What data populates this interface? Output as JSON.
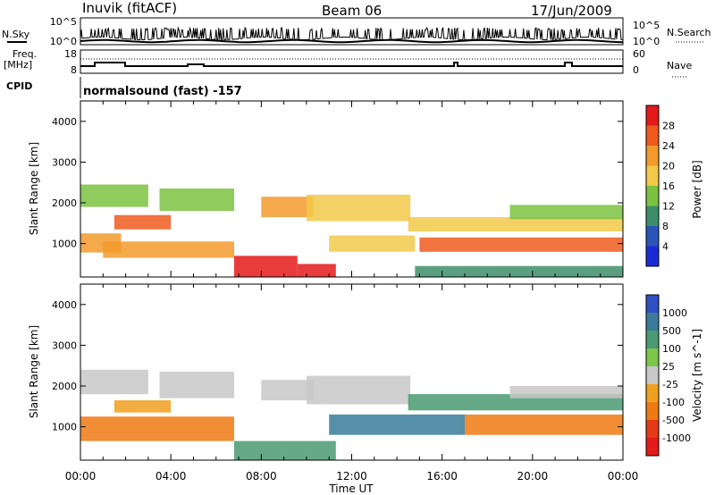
{
  "header": {
    "station": "Inuvik (fitACF)",
    "beam": "Beam 06",
    "date": "17/Jun/2009"
  },
  "top_panels": {
    "nsky_label": "N.Sky",
    "nsky_tick_top": "10^5",
    "nsky_tick_bottom": "10^0",
    "nsearch_label": "N.Search",
    "nsearch_tick_top": "10^5",
    "nsearch_tick_bottom": "10^0",
    "freq_label": "Freq.",
    "freq_unit": "[MHz]",
    "freq_tick_top": "18",
    "freq_tick_bottom": "8",
    "nave_label": "Nave",
    "nave_tick_top": "60",
    "nave_tick_bottom": "0",
    "cpid_label": "CPID",
    "cpid_text": "normalsound (fast) -157"
  },
  "colors": {
    "power": [
      "#1a2bd6",
      "#2a55b8",
      "#3d8f6a",
      "#7cc242",
      "#f2c94a",
      "#f29a2b",
      "#ef5a1e",
      "#e41a1a"
    ],
    "velocity": [
      "#2f4fc4",
      "#3a7b9a",
      "#4a9a72",
      "#7cc64a",
      "#c8c8c8",
      "#f0a020",
      "#ee7a12",
      "#e43a18",
      "#e41a1a"
    ]
  },
  "chart_data": [
    {
      "type": "heatmap",
      "title": "",
      "xlabel": "",
      "ylabel": "Slant Range [km]",
      "x_ticks": [
        "00:00",
        "04:00",
        "08:00",
        "12:00",
        "16:00",
        "20:00",
        "00:00"
      ],
      "xlim_hours": [
        0,
        24
      ],
      "ylim_km": [
        180,
        4500
      ],
      "y_ticks": [
        1000,
        2000,
        3000,
        4000
      ],
      "colorbar": {
        "label": "Power [dB]",
        "ticks": [
          4,
          8,
          12,
          16,
          20,
          24,
          28
        ],
        "range": [
          0,
          30
        ]
      },
      "echo_bands": [
        {
          "t_start": 0.0,
          "t_end": 1.8,
          "range_low_km": 780,
          "range_high_km": 1250,
          "value_db": 22
        },
        {
          "t_start": 0.0,
          "t_end": 3.0,
          "range_low_km": 1900,
          "range_high_km": 2450,
          "value_db": 14
        },
        {
          "t_start": 1.0,
          "t_end": 6.8,
          "range_low_km": 650,
          "range_high_km": 1050,
          "value_db": 20
        },
        {
          "t_start": 1.5,
          "t_end": 4.0,
          "range_low_km": 1350,
          "range_high_km": 1700,
          "value_db": 24
        },
        {
          "t_start": 3.5,
          "t_end": 6.8,
          "range_low_km": 1800,
          "range_high_km": 2350,
          "value_db": 14
        },
        {
          "t_start": 6.8,
          "t_end": 9.6,
          "range_low_km": 180,
          "range_high_km": 700,
          "value_db": 28
        },
        {
          "t_start": 8.0,
          "t_end": 10.3,
          "range_low_km": 1650,
          "range_high_km": 2150,
          "value_db": 20
        },
        {
          "t_start": 9.6,
          "t_end": 11.3,
          "range_low_km": 180,
          "range_high_km": 500,
          "value_db": 27
        },
        {
          "t_start": 10.0,
          "t_end": 14.6,
          "range_low_km": 1550,
          "range_high_km": 2200,
          "value_db": 15
        },
        {
          "t_start": 11.0,
          "t_end": 14.8,
          "range_low_km": 800,
          "range_high_km": 1200,
          "value_db": 18
        },
        {
          "t_start": 14.5,
          "t_end": 24.0,
          "range_low_km": 1300,
          "range_high_km": 1650,
          "value_db": 17
        },
        {
          "t_start": 15.0,
          "t_end": 24.0,
          "range_low_km": 800,
          "range_high_km": 1150,
          "value_db": 23
        },
        {
          "t_start": 14.8,
          "t_end": 24.0,
          "range_low_km": 180,
          "range_high_km": 450,
          "value_db": 9
        },
        {
          "t_start": 19.0,
          "t_end": 24.0,
          "range_low_km": 1600,
          "range_high_km": 1950,
          "value_db": 12
        }
      ]
    },
    {
      "type": "heatmap",
      "title": "",
      "xlabel": "Time UT",
      "ylabel": "Slant Range [km]",
      "x_ticks": [
        "00:00",
        "04:00",
        "08:00",
        "12:00",
        "16:00",
        "20:00",
        "00:00"
      ],
      "xlim_hours": [
        0,
        24
      ],
      "ylim_km": [
        180,
        4500
      ],
      "y_ticks": [
        1000,
        2000,
        3000,
        4000
      ],
      "colorbar": {
        "label": "Velocity [m s^-1]",
        "ticks": [
          "1000",
          "500",
          "100",
          "25",
          "-25",
          "-100",
          "-500",
          "-1000"
        ]
      },
      "echo_bands": [
        {
          "t_start": 0.0,
          "t_end": 3.0,
          "range_low_km": 1800,
          "range_high_km": 2400,
          "value_ms": 0
        },
        {
          "t_start": 3.5,
          "t_end": 6.8,
          "range_low_km": 1700,
          "range_high_km": 2350,
          "value_ms": 0
        },
        {
          "t_start": 0.0,
          "t_end": 6.8,
          "range_low_km": 650,
          "range_high_km": 1250,
          "value_ms": -150
        },
        {
          "t_start": 1.5,
          "t_end": 4.0,
          "range_low_km": 1350,
          "range_high_km": 1650,
          "value_ms": -80
        },
        {
          "t_start": 6.8,
          "t_end": 11.3,
          "range_low_km": 180,
          "range_high_km": 650,
          "value_ms": 80
        },
        {
          "t_start": 8.0,
          "t_end": 10.3,
          "range_low_km": 1650,
          "range_high_km": 2150,
          "value_ms": 0
        },
        {
          "t_start": 10.0,
          "t_end": 14.6,
          "range_low_km": 1550,
          "range_high_km": 2250,
          "value_ms": 0
        },
        {
          "t_start": 11.0,
          "t_end": 17.0,
          "range_low_km": 800,
          "range_high_km": 1300,
          "value_ms": 120
        },
        {
          "t_start": 14.5,
          "t_end": 24.0,
          "range_low_km": 1400,
          "range_high_km": 1800,
          "value_ms": 60
        },
        {
          "t_start": 17.0,
          "t_end": 24.0,
          "range_low_km": 800,
          "range_high_km": 1300,
          "value_ms": -120
        },
        {
          "t_start": 19.0,
          "t_end": 24.0,
          "range_low_km": 1700,
          "range_high_km": 2000,
          "value_ms": 0
        }
      ]
    }
  ]
}
